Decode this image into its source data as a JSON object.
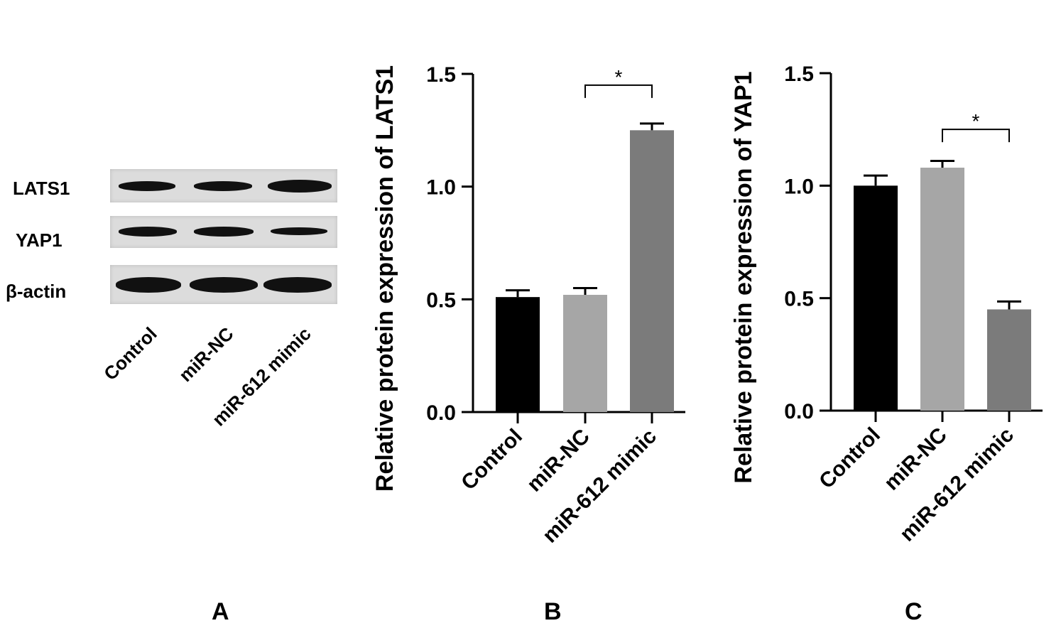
{
  "blot": {
    "row_labels": [
      "LATS1",
      "YAP1",
      "β-actin"
    ],
    "lane_labels": [
      "Control",
      "miR-NC",
      "miR-612 mimic"
    ]
  },
  "panels": {
    "a": "A",
    "b": "B",
    "c": "C"
  },
  "colors": {
    "control": "#000000",
    "mirnc": "#a6a6a6",
    "mimic": "#7b7b7b"
  },
  "chart_data": [
    {
      "type": "bar",
      "categories": [
        "Control",
        "miR-NC",
        "miR-612 mimic"
      ],
      "values": [
        0.51,
        0.52,
        1.25
      ],
      "errors": [
        0.03,
        0.03,
        0.03
      ],
      "ylabel": "Relative protein expression of LATS1",
      "ylim": [
        0,
        1.5
      ],
      "yticks": [
        "0.0",
        "0.5",
        "1.0",
        "1.5"
      ],
      "significance": {
        "from": 1,
        "to": 2,
        "label": "*"
      }
    },
    {
      "type": "bar",
      "categories": [
        "Control",
        "miR-NC",
        "miR-612 mimic"
      ],
      "values": [
        1.0,
        1.08,
        0.45
      ],
      "errors": [
        0.045,
        0.03,
        0.035
      ],
      "ylabel": "Relative protein expression of YAP1",
      "ylim": [
        0,
        1.5
      ],
      "yticks": [
        "0.0",
        "0.5",
        "1.0",
        "1.5"
      ],
      "significance": {
        "from": 1,
        "to": 2,
        "label": "*"
      }
    }
  ]
}
